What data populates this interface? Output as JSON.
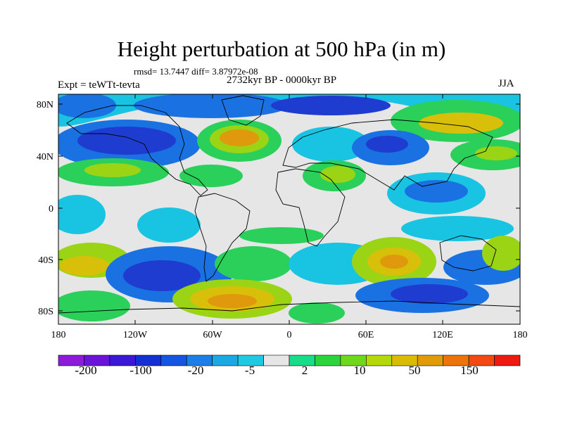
{
  "figure": {
    "title": "Height perturbation at 500 hPa (in m)",
    "stats": "rmsd= 13.7447 diff= 3.87972e-08",
    "period": "2732kyr BP - 0000kyr BP",
    "experiment": "Expt = teWTt-tevta",
    "season": "JJA"
  },
  "axes": {
    "y_ticks": [
      "80N",
      "40N",
      "0",
      "40S",
      "80S"
    ],
    "x_ticks": [
      "180",
      "120W",
      "60W",
      "0",
      "60E",
      "120E",
      "180"
    ]
  },
  "colorbar": {
    "labels": [
      "-200",
      "-100",
      "-20",
      "-5",
      "2",
      "10",
      "50",
      "150"
    ],
    "colors": [
      "#8c1cd8",
      "#6a14d8",
      "#3a18d4",
      "#1430d0",
      "#1456e0",
      "#1a80e6",
      "#1ca8e4",
      "#20c8e2",
      "#e6e6e6",
      "#18dc88",
      "#2cd43a",
      "#70d81c",
      "#b4d80c",
      "#d8bc08",
      "#e09a0a",
      "#ec740c",
      "#f04a10",
      "#ec1a10"
    ]
  },
  "map_colors": {
    "blue_dark": "#1e3cd0",
    "blue": "#1a72e2",
    "cyan": "#18c4e2",
    "neutral": "#e6e6e6",
    "green": "#2ad05a",
    "lime": "#9ad414",
    "yellow": "#d8c00a",
    "orange": "#e0980c"
  }
}
